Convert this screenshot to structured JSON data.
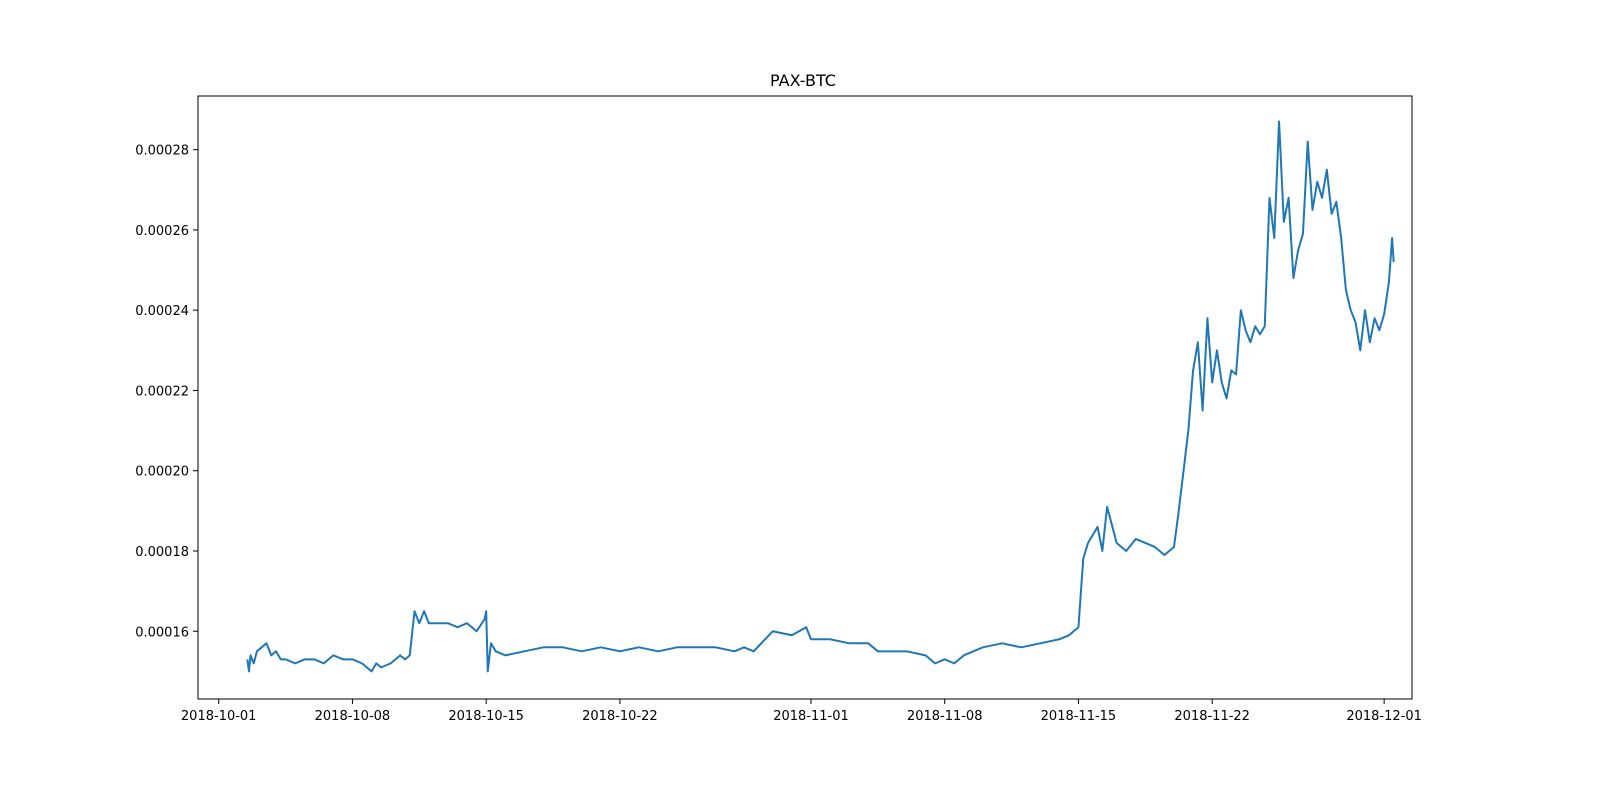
{
  "chart_data": {
    "type": "line",
    "title": "PAX-BTC",
    "xlabel": "",
    "ylabel": "",
    "grid": false,
    "legend": "none",
    "line_color": "#1f77b4",
    "xlim": [
      "2018-09-29T22:00",
      "2018-12-02T11:00"
    ],
    "ylim": [
      0.00014312,
      0.00029337
    ],
    "x_ticks": [
      "2018-10-01",
      "2018-10-08",
      "2018-10-15",
      "2018-10-22",
      "2018-11-01",
      "2018-11-08",
      "2018-11-15",
      "2018-11-22",
      "2018-12-01"
    ],
    "y_ticks": [
      "0.00016",
      "0.00018",
      "0.00020",
      "0.00022",
      "0.00024",
      "0.00026",
      "0.00028"
    ],
    "series": [
      {
        "x": [
          "2018-10-02T12:00",
          "2018-10-02T14:00",
          "2018-10-02T16:00",
          "2018-10-02T20:00",
          "2018-10-03T00:00",
          "2018-10-03T06:00",
          "2018-10-03T12:00",
          "2018-10-03T18:00",
          "2018-10-04T00:00",
          "2018-10-04T06:00",
          "2018-10-04T12:00",
          "2018-10-05T00:00",
          "2018-10-05T12:00",
          "2018-10-06T00:00",
          "2018-10-06T12:00",
          "2018-10-07T00:00",
          "2018-10-07T12:00",
          "2018-10-08T00:00",
          "2018-10-08T12:00",
          "2018-10-09T00:00",
          "2018-10-09T06:00",
          "2018-10-09T12:00",
          "2018-10-10T00:00",
          "2018-10-10T12:00",
          "2018-10-10T18:00",
          "2018-10-11T00:00",
          "2018-10-11T06:00",
          "2018-10-11T12:00",
          "2018-10-11T18:00",
          "2018-10-12T00:00",
          "2018-10-12T12:00",
          "2018-10-13T00:00",
          "2018-10-13T12:00",
          "2018-10-14T00:00",
          "2018-10-14T12:00",
          "2018-10-14T22:00",
          "2018-10-15T00:00",
          "2018-10-15T02:00",
          "2018-10-15T06:00",
          "2018-10-15T12:00",
          "2018-10-16T00:00",
          "2018-10-17T00:00",
          "2018-10-18T00:00",
          "2018-10-19T00:00",
          "2018-10-20T00:00",
          "2018-10-21T00:00",
          "2018-10-22T00:00",
          "2018-10-23T00:00",
          "2018-10-24T00:00",
          "2018-10-25T00:00",
          "2018-10-26T00:00",
          "2018-10-27T00:00",
          "2018-10-28T00:00",
          "2018-10-28T12:00",
          "2018-10-29T00:00",
          "2018-10-30T00:00",
          "2018-10-31T00:00",
          "2018-10-31T18:00",
          "2018-11-01T00:00",
          "2018-11-02T00:00",
          "2018-11-03T00:00",
          "2018-11-04T00:00",
          "2018-11-04T12:00",
          "2018-11-05T00:00",
          "2018-11-06T00:00",
          "2018-11-07T00:00",
          "2018-11-07T12:00",
          "2018-11-08T00:00",
          "2018-11-08T12:00",
          "2018-11-09T00:00",
          "2018-11-10T00:00",
          "2018-11-11T00:00",
          "2018-11-12T00:00",
          "2018-11-13T00:00",
          "2018-11-14T00:00",
          "2018-11-14T12:00",
          "2018-11-14T18:00",
          "2018-11-15T00:00",
          "2018-11-15T06:00",
          "2018-11-15T12:00",
          "2018-11-16T00:00",
          "2018-11-16T06:00",
          "2018-11-16T12:00",
          "2018-11-17T00:00",
          "2018-11-17T12:00",
          "2018-11-18T00:00",
          "2018-11-18T12:00",
          "2018-11-19T00:00",
          "2018-11-19T06:00",
          "2018-11-19T12:00",
          "2018-11-20T00:00",
          "2018-11-20T06:00",
          "2018-11-20T12:00",
          "2018-11-20T18:00",
          "2018-11-21T00:00",
          "2018-11-21T06:00",
          "2018-11-21T12:00",
          "2018-11-21T18:00",
          "2018-11-22T00:00",
          "2018-11-22T06:00",
          "2018-11-22T12:00",
          "2018-11-22T18:00",
          "2018-11-23T00:00",
          "2018-11-23T06:00",
          "2018-11-23T12:00",
          "2018-11-23T18:00",
          "2018-11-24T00:00",
          "2018-11-24T06:00",
          "2018-11-24T12:00",
          "2018-11-24T18:00",
          "2018-11-25T00:00",
          "2018-11-25T06:00",
          "2018-11-25T12:00",
          "2018-11-25T18:00",
          "2018-11-26T00:00",
          "2018-11-26T06:00",
          "2018-11-26T12:00",
          "2018-11-26T18:00",
          "2018-11-27T00:00",
          "2018-11-27T06:00",
          "2018-11-27T12:00",
          "2018-11-27T18:00",
          "2018-11-28T00:00",
          "2018-11-28T06:00",
          "2018-11-28T12:00",
          "2018-11-28T18:00",
          "2018-11-29T00:00",
          "2018-11-29T06:00",
          "2018-11-29T12:00",
          "2018-11-29T18:00",
          "2018-11-30T00:00",
          "2018-11-30T06:00",
          "2018-11-30T12:00",
          "2018-11-30T18:00",
          "2018-12-01T00:00",
          "2018-12-01T06:00",
          "2018-12-01T10:00",
          "2018-12-01T12:00"
        ],
        "y": [
          0.000153,
          0.00015,
          0.000154,
          0.000152,
          0.000155,
          0.000156,
          0.000157,
          0.000154,
          0.000155,
          0.000153,
          0.000153,
          0.000152,
          0.000153,
          0.000153,
          0.000152,
          0.000154,
          0.000153,
          0.000153,
          0.000152,
          0.00015,
          0.000152,
          0.000151,
          0.000152,
          0.000154,
          0.000153,
          0.000154,
          0.000165,
          0.000162,
          0.000165,
          0.000162,
          0.000162,
          0.000162,
          0.000161,
          0.000162,
          0.00016,
          0.000163,
          0.000165,
          0.00015,
          0.000157,
          0.000155,
          0.000154,
          0.000155,
          0.000156,
          0.000156,
          0.000155,
          0.000156,
          0.000155,
          0.000156,
          0.000155,
          0.000156,
          0.000156,
          0.000156,
          0.000155,
          0.000156,
          0.000155,
          0.00016,
          0.000159,
          0.000161,
          0.000158,
          0.000158,
          0.000157,
          0.000157,
          0.000155,
          0.000155,
          0.000155,
          0.000154,
          0.000152,
          0.000153,
          0.000152,
          0.000154,
          0.000156,
          0.000157,
          0.000156,
          0.000157,
          0.000158,
          0.000159,
          0.00016,
          0.000161,
          0.000178,
          0.000182,
          0.000186,
          0.00018,
          0.000191,
          0.000182,
          0.00018,
          0.000183,
          0.000182,
          0.000181,
          0.00018,
          0.000179,
          0.000181,
          0.00019,
          0.0002,
          0.00021,
          0.000225,
          0.000232,
          0.000215,
          0.000238,
          0.000222,
          0.00023,
          0.000222,
          0.000218,
          0.000225,
          0.000224,
          0.00024,
          0.000235,
          0.000232,
          0.000236,
          0.000234,
          0.000236,
          0.000268,
          0.000258,
          0.000287,
          0.000262,
          0.000268,
          0.000248,
          0.000255,
          0.000259,
          0.000282,
          0.000265,
          0.000272,
          0.000268,
          0.000275,
          0.000264,
          0.000267,
          0.000258,
          0.000245,
          0.00024,
          0.000237,
          0.00023,
          0.00024,
          0.000232,
          0.000238,
          0.000235,
          0.000239,
          0.000247,
          0.000258,
          0.000252
        ]
      }
    ]
  }
}
